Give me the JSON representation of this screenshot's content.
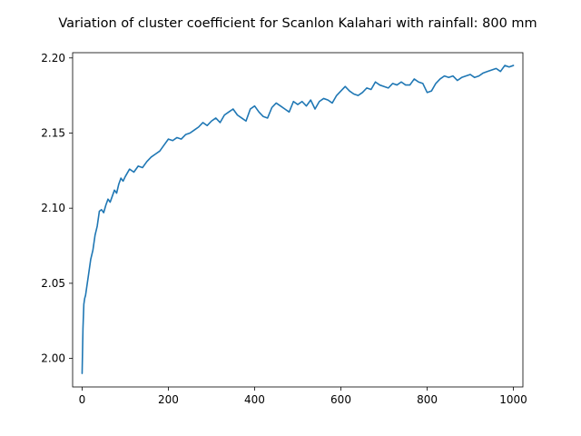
{
  "chart_data": {
    "type": "line",
    "title": "Variation of cluster coefficient for Scanlon Kalahari with rainfall: 800 mm",
    "xlabel": "",
    "ylabel": "",
    "xlim": [
      -22,
      1022
    ],
    "ylim": [
      1.981,
      2.2035
    ],
    "grid": false,
    "x_ticks": [
      0,
      200,
      400,
      600,
      800,
      1000
    ],
    "x_tick_labels": [
      "0",
      "200",
      "400",
      "600",
      "800",
      "1000"
    ],
    "y_ticks": [
      2.0,
      2.05,
      2.1,
      2.15,
      2.2
    ],
    "y_tick_labels": [
      "2.00",
      "2.05",
      "2.10",
      "2.15",
      "2.20"
    ],
    "series": [
      {
        "color": "#1f77b4",
        "x": [
          0,
          2,
          4,
          6,
          8,
          10,
          15,
          20,
          25,
          30,
          35,
          40,
          45,
          50,
          55,
          60,
          65,
          70,
          75,
          80,
          85,
          90,
          95,
          100,
          110,
          120,
          130,
          140,
          150,
          160,
          170,
          180,
          190,
          200,
          210,
          220,
          230,
          240,
          250,
          260,
          270,
          280,
          290,
          300,
          310,
          320,
          330,
          340,
          350,
          360,
          370,
          380,
          390,
          400,
          410,
          420,
          430,
          440,
          450,
          460,
          470,
          480,
          490,
          500,
          510,
          520,
          530,
          540,
          550,
          560,
          570,
          580,
          590,
          600,
          610,
          620,
          630,
          640,
          650,
          660,
          670,
          680,
          690,
          700,
          710,
          720,
          730,
          740,
          750,
          760,
          770,
          780,
          790,
          800,
          810,
          820,
          830,
          840,
          850,
          860,
          870,
          880,
          890,
          900,
          910,
          920,
          930,
          940,
          950,
          960,
          970,
          980,
          990,
          1000
        ],
        "y": [
          1.99,
          2.02,
          2.036,
          2.04,
          2.042,
          2.046,
          2.056,
          2.066,
          2.072,
          2.082,
          2.088,
          2.098,
          2.099,
          2.097,
          2.102,
          2.106,
          2.104,
          2.108,
          2.112,
          2.11,
          2.116,
          2.12,
          2.118,
          2.121,
          2.126,
          2.124,
          2.128,
          2.127,
          2.131,
          2.134,
          2.136,
          2.138,
          2.142,
          2.146,
          2.145,
          2.147,
          2.146,
          2.149,
          2.15,
          2.152,
          2.154,
          2.157,
          2.155,
          2.158,
          2.16,
          2.157,
          2.162,
          2.164,
          2.166,
          2.162,
          2.16,
          2.158,
          2.166,
          2.168,
          2.164,
          2.161,
          2.16,
          2.167,
          2.17,
          2.168,
          2.166,
          2.164,
          2.171,
          2.169,
          2.171,
          2.168,
          2.172,
          2.166,
          2.171,
          2.173,
          2.172,
          2.17,
          2.175,
          2.178,
          2.181,
          2.178,
          2.176,
          2.175,
          2.177,
          2.18,
          2.179,
          2.184,
          2.182,
          2.181,
          2.18,
          2.183,
          2.182,
          2.184,
          2.182,
          2.182,
          2.186,
          2.184,
          2.183,
          2.177,
          2.178,
          2.183,
          2.186,
          2.188,
          2.187,
          2.188,
          2.185,
          2.187,
          2.188,
          2.189,
          2.187,
          2.188,
          2.19,
          2.191,
          2.192,
          2.193,
          2.191,
          2.195,
          2.194,
          2.195
        ]
      }
    ]
  }
}
